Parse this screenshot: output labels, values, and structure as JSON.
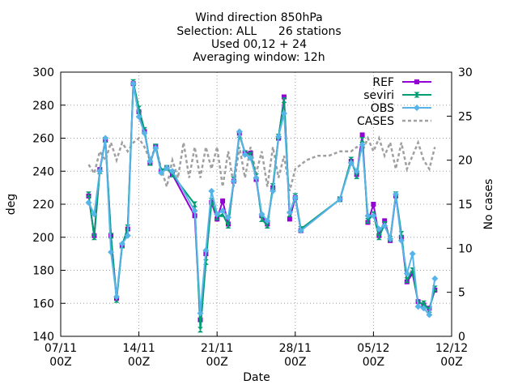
{
  "chart_data": {
    "type": "line",
    "title_lines": [
      "Wind direction 850hPa",
      "Selection: ALL      26 stations",
      "Used 00,12 + 24",
      "Averaging window: 12h"
    ],
    "xlabel": "Date",
    "ylabel": "deg",
    "y2label": "No cases",
    "xlim": [
      0,
      35
    ],
    "ylim": [
      140,
      300
    ],
    "y2lim": [
      0,
      30
    ],
    "x_ticks": [
      {
        "x": 0,
        "label1": "07/11",
        "label2": "00Z"
      },
      {
        "x": 7,
        "label1": "14/11",
        "label2": "00Z"
      },
      {
        "x": 14,
        "label1": "21/11",
        "label2": "00Z"
      },
      {
        "x": 21,
        "label1": "28/11",
        "label2": "00Z"
      },
      {
        "x": 28,
        "label1": "05/12",
        "label2": "00Z"
      },
      {
        "x": 35,
        "label1": "12/12",
        "label2": "00Z"
      }
    ],
    "y_ticks": [
      "140",
      "160",
      "180",
      "200",
      "220",
      "240",
      "260",
      "280",
      "300"
    ],
    "y2_ticks": [
      "0",
      "5",
      "10",
      "15",
      "20",
      "25",
      "30"
    ],
    "grid": "dotted",
    "legend_position": "top-right",
    "colors": {
      "REF": "#9400d3",
      "seviri": "#009e73",
      "OBS": "#56b4e9",
      "CASES": "#a0a0a0"
    },
    "series": [
      {
        "name": "REF",
        "style": "line-points",
        "points": [
          [
            2.5,
            225
          ],
          [
            3,
            201
          ],
          [
            3.5,
            241
          ],
          [
            4,
            259
          ],
          [
            4.5,
            201
          ],
          [
            5,
            163
          ],
          [
            5.5,
            195
          ],
          [
            6,
            205
          ],
          [
            6.5,
            293
          ],
          [
            7,
            276
          ],
          [
            7.5,
            264
          ],
          [
            8,
            245
          ],
          [
            8.5,
            255
          ],
          [
            9,
            240
          ],
          [
            9.5,
            242
          ],
          [
            10,
            238
          ],
          [
            12,
            213
          ],
          [
            12.5,
            150
          ],
          [
            13,
            190
          ],
          [
            13.5,
            221
          ],
          [
            14,
            211
          ],
          [
            14.5,
            222
          ],
          [
            15,
            208
          ],
          [
            15.5,
            234
          ],
          [
            16,
            263
          ],
          [
            16.5,
            251
          ],
          [
            17,
            251
          ],
          [
            17.5,
            235
          ],
          [
            18,
            213
          ],
          [
            18.5,
            208
          ],
          [
            19,
            230
          ],
          [
            19.5,
            260
          ],
          [
            20,
            285
          ],
          [
            20.5,
            211
          ],
          [
            21,
            224
          ],
          [
            21.5,
            204
          ],
          [
            25,
            223
          ],
          [
            26,
            246
          ],
          [
            26.5,
            238
          ],
          [
            27,
            262
          ],
          [
            27.5,
            209
          ],
          [
            28,
            220
          ],
          [
            28.5,
            201
          ],
          [
            29,
            210
          ],
          [
            29.5,
            198
          ],
          [
            30,
            225
          ],
          [
            30.5,
            200
          ],
          [
            31,
            173
          ],
          [
            31.5,
            178
          ],
          [
            32,
            161
          ],
          [
            32.5,
            159
          ],
          [
            33,
            157
          ],
          [
            33.5,
            168
          ]
        ]
      },
      {
        "name": "seviri",
        "style": "line-points",
        "points": [
          [
            2.5,
            226
          ],
          [
            3,
            200
          ],
          [
            3.5,
            240
          ],
          [
            4,
            259
          ],
          [
            4.5,
            201
          ],
          [
            5,
            162
          ],
          [
            5.5,
            195
          ],
          [
            6,
            206
          ],
          [
            6.5,
            294
          ],
          [
            7,
            278
          ],
          [
            7.5,
            265
          ],
          [
            8,
            245
          ],
          [
            8.5,
            255
          ],
          [
            9,
            240
          ],
          [
            9.5,
            242
          ],
          [
            10,
            238
          ],
          [
            12,
            220
          ],
          [
            12.5,
            144
          ],
          [
            13,
            185
          ],
          [
            13.5,
            222
          ],
          [
            14,
            212
          ],
          [
            14.5,
            214
          ],
          [
            15,
            207
          ],
          [
            15.5,
            235
          ],
          [
            16,
            262
          ],
          [
            16.5,
            251
          ],
          [
            17,
            250
          ],
          [
            17.5,
            237
          ],
          [
            18,
            211
          ],
          [
            18.5,
            207
          ],
          [
            19,
            231
          ],
          [
            19.5,
            261
          ],
          [
            20,
            283
          ],
          [
            20.5,
            214
          ],
          [
            21,
            225
          ],
          [
            21.5,
            205
          ],
          [
            25,
            223
          ],
          [
            26,
            247
          ],
          [
            26.5,
            237
          ],
          [
            27,
            259
          ],
          [
            27.5,
            210
          ],
          [
            28,
            214
          ],
          [
            28.5,
            200
          ],
          [
            29,
            208
          ],
          [
            29.5,
            199
          ],
          [
            30,
            226
          ],
          [
            30.5,
            202
          ],
          [
            31,
            174
          ],
          [
            31.5,
            180
          ],
          [
            32,
            160
          ],
          [
            32.5,
            160
          ],
          [
            33,
            156
          ],
          [
            33.5,
            169
          ]
        ]
      },
      {
        "name": "OBS",
        "style": "line-points",
        "points": [
          [
            2.5,
            221
          ],
          [
            3,
            214
          ],
          [
            3.5,
            240
          ],
          [
            4,
            260
          ],
          [
            4.5,
            191
          ],
          [
            5,
            164
          ],
          [
            5.5,
            196
          ],
          [
            6,
            201
          ],
          [
            6.5,
            293
          ],
          [
            7,
            273
          ],
          [
            7.5,
            263
          ],
          [
            8,
            246
          ],
          [
            8.5,
            254
          ],
          [
            9,
            239
          ],
          [
            9.5,
            242
          ],
          [
            10,
            240
          ],
          [
            12,
            216
          ],
          [
            12.5,
            154
          ],
          [
            13,
            192
          ],
          [
            13.5,
            228
          ],
          [
            14,
            214
          ],
          [
            14.5,
            216
          ],
          [
            15,
            212
          ],
          [
            15.5,
            234
          ],
          [
            16,
            264
          ],
          [
            16.5,
            250
          ],
          [
            17,
            248
          ],
          [
            17.5,
            236
          ],
          [
            18,
            214
          ],
          [
            18.5,
            210
          ],
          [
            19,
            228
          ],
          [
            19.5,
            261
          ],
          [
            20,
            275
          ],
          [
            20.5,
            215
          ],
          [
            21,
            224
          ],
          [
            21.5,
            204
          ],
          [
            25,
            223
          ],
          [
            26,
            245
          ],
          [
            26.5,
            240
          ],
          [
            27,
            256
          ],
          [
            27.5,
            213
          ],
          [
            28,
            213
          ],
          [
            28.5,
            205
          ],
          [
            29,
            207
          ],
          [
            29.5,
            199
          ],
          [
            30,
            226
          ],
          [
            30.5,
            198
          ],
          [
            31,
            178
          ],
          [
            31.5,
            190
          ],
          [
            32,
            158
          ],
          [
            32.5,
            157
          ],
          [
            33,
            153
          ],
          [
            33.5,
            175
          ]
        ]
      },
      {
        "name": "CASES",
        "style": "dashed",
        "axis": "y2",
        "points": [
          [
            2.5,
            19.5
          ],
          [
            3,
            18.5
          ],
          [
            3.5,
            21
          ],
          [
            4,
            20
          ],
          [
            4.5,
            22
          ],
          [
            5,
            20
          ],
          [
            5.5,
            22
          ],
          [
            6,
            21
          ],
          [
            6.5,
            22
          ],
          [
            7,
            22.5
          ],
          [
            7.5,
            21.5
          ],
          [
            8,
            20
          ],
          [
            8.5,
            21.5
          ],
          [
            9,
            19
          ],
          [
            9.5,
            17
          ],
          [
            10,
            20
          ],
          [
            10.5,
            18
          ],
          [
            11,
            22
          ],
          [
            11.5,
            18
          ],
          [
            12,
            21.5
          ],
          [
            12.5,
            18
          ],
          [
            13,
            21.5
          ],
          [
            13.5,
            19
          ],
          [
            14,
            21.5
          ],
          [
            14.5,
            17
          ],
          [
            15,
            21
          ],
          [
            15.5,
            17
          ],
          [
            16,
            21.5
          ],
          [
            16.5,
            18
          ],
          [
            17,
            21.5
          ],
          [
            17.5,
            18.5
          ],
          [
            18,
            21
          ],
          [
            18.5,
            17
          ],
          [
            19,
            21.5
          ],
          [
            19.5,
            18
          ],
          [
            20,
            20.5
          ],
          [
            20.5,
            16.5
          ],
          [
            21,
            19
          ],
          [
            22,
            20
          ],
          [
            23,
            20.5
          ],
          [
            24,
            20.5
          ],
          [
            25,
            21
          ],
          [
            26,
            21
          ],
          [
            26.5,
            21.5
          ],
          [
            27,
            21
          ],
          [
            27.5,
            22.5
          ],
          [
            28,
            21
          ],
          [
            28.5,
            22.5
          ],
          [
            29,
            20.5
          ],
          [
            29.5,
            22
          ],
          [
            30,
            19
          ],
          [
            30.5,
            22
          ],
          [
            31,
            19
          ],
          [
            31.5,
            20.5
          ],
          [
            32,
            22
          ],
          [
            32.5,
            20
          ],
          [
            33,
            19
          ],
          [
            33.5,
            21.5
          ]
        ]
      }
    ]
  }
}
